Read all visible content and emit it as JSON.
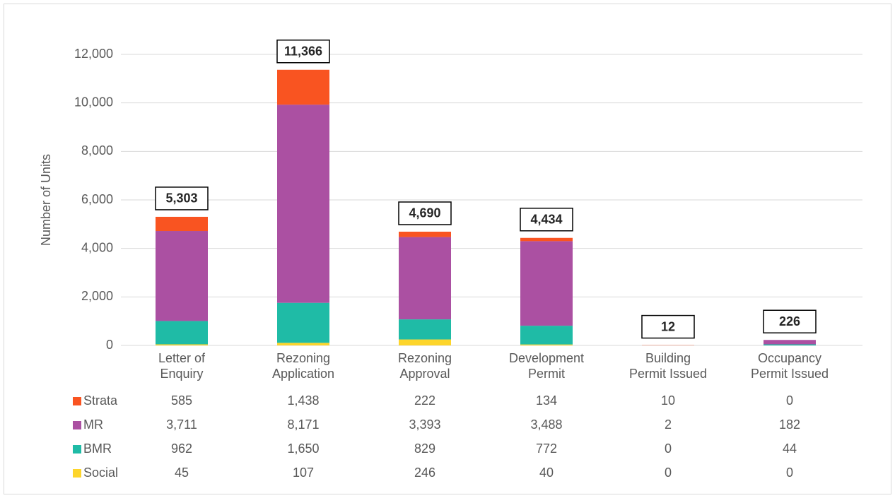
{
  "chart_data": {
    "type": "stacked_bar",
    "ylabel": "Number of Units",
    "categories": [
      "Letter of\nEnquiry",
      "Rezoning\nApplication",
      "Rezoning\nApproval",
      "Development\nPermit",
      "Building\nPermit Issued",
      "Occupancy\nPermit Issued"
    ],
    "series": [
      {
        "name": "Strata",
        "color": "#f95421",
        "values": [
          585,
          1438,
          222,
          134,
          10,
          0
        ],
        "value_labels": [
          "585",
          "1,438",
          "222",
          "134",
          "10",
          "0"
        ]
      },
      {
        "name": "MR",
        "color": "#ab50a2",
        "values": [
          3711,
          8171,
          3393,
          3488,
          2,
          182
        ],
        "value_labels": [
          "3,711",
          "8,171",
          "3,393",
          "3,488",
          "2",
          "182"
        ]
      },
      {
        "name": "BMR",
        "color": "#1fbba6",
        "values": [
          962,
          1650,
          829,
          772,
          0,
          44
        ],
        "value_labels": [
          "962",
          "1,650",
          "829",
          "772",
          "0",
          "44"
        ]
      },
      {
        "name": "Social",
        "color": "#fdd52b",
        "values": [
          45,
          107,
          246,
          40,
          0,
          0
        ],
        "value_labels": [
          "45",
          "107",
          "246",
          "40",
          "0",
          "0"
        ]
      }
    ],
    "totals": {
      "values": [
        5303,
        11366,
        4690,
        4434,
        12,
        226
      ],
      "value_labels": [
        "5,303",
        "11,366",
        "4,690",
        "4,434",
        "12",
        "226"
      ]
    },
    "ylim": [
      0,
      12000
    ],
    "yticks": [
      0,
      {
        "value": 2000,
        "label": "2,000"
      },
      {
        "value": 4000,
        "label": "4,000"
      },
      {
        "value": 6000,
        "label": "6,000"
      },
      {
        "value": 8000,
        "label": "8,000"
      },
      {
        "value": 10000,
        "label": "10,000"
      },
      {
        "value": 12000,
        "label": "12,000"
      }
    ],
    "grid": true
  }
}
